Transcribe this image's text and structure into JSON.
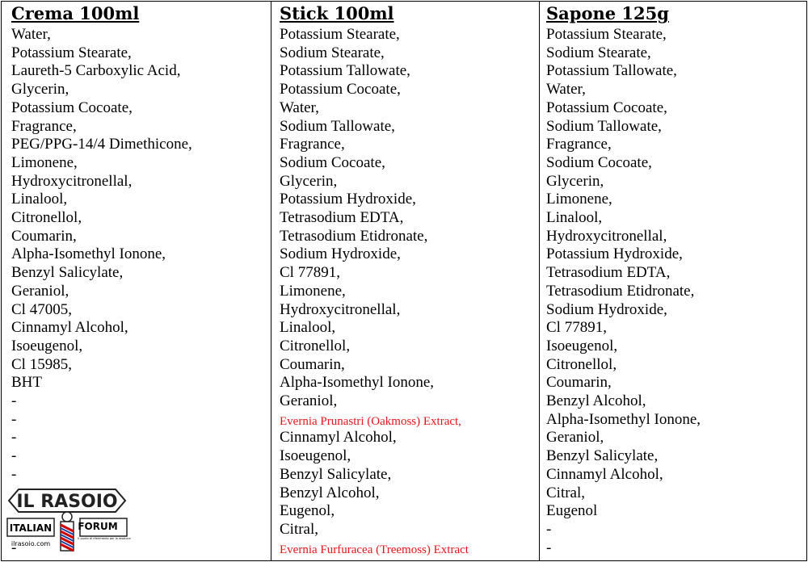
{
  "table": {
    "columns": [
      {
        "header": "Crema 100ml",
        "items": [
          "Water,",
          "Potassium Stearate,",
          "Laureth-5 Carboxylic Acid,",
          "Glycerin,",
          "Potassium Cocoate,",
          "Fragrance,",
          "PEG/PPG-14/4 Dimethicone,",
          "Limonene,",
          "Hydroxycitronellal,",
          "Linalool,",
          "Citronellol,",
          "Coumarin,",
          "Alpha-Isomethyl Ionone,",
          "Benzyl Salicylate,",
          "Geraniol,",
          "Cl 47005,",
          "Cinnamyl Alcohol,",
          "Isoeugenol,",
          "Cl 15985,",
          "BHT",
          "-",
          "-",
          "-",
          "-",
          "-"
        ],
        "last_item": "-"
      },
      {
        "header": "Stick 100ml",
        "items": [
          "Potassium Stearate,",
          "Sodium Stearate,",
          "Potassium Tallowate,",
          "Potassium Cocoate,",
          "Water,",
          "Sodium Tallowate,",
          "Fragrance,",
          "Sodium Cocoate,",
          "Glycerin,",
          "Potassium Hydroxide,",
          "Tetrasodium EDTA,",
          "Tetrasodium Etidronate,",
          "Sodium Hydroxide,",
          "Cl 77891,",
          "Limonene,",
          "Hydroxycitronellal,",
          "Linalool,",
          "Citronellol,",
          "Coumarin,",
          "Alpha-Isomethyl Ionone,",
          "Geraniol,",
          {
            "text": "Evernia Prunastri (Oakmoss) Extract,",
            "color": "#e8141b"
          },
          "Cinnamyl Alcohol,",
          "Isoeugenol,",
          "Benzyl Salicylate,",
          "Benzyl Alcohol,",
          "Eugenol,",
          "Citral,",
          {
            "text": "Evernia Furfuracea (Treemoss) Extract",
            "color": "#e8141b"
          }
        ]
      },
      {
        "header": "Sapone 125g",
        "items": [
          "Potassium Stearate,",
          "Sodium Stearate,",
          "Potassium Tallowate,",
          "Water,",
          "Potassium Cocoate,",
          "Sodium Tallowate,",
          "Fragrance,",
          "Sodium Cocoate,",
          "Glycerin,",
          "Limonene,",
          "Linalool,",
          "Hydroxycitronellal,",
          "Potassium Hydroxide,",
          "Tetrasodium EDTA,",
          "Tetrasodium Etidronate,",
          "Sodium Hydroxide,",
          "Cl 77891,",
          "Isoeugenol,",
          "Citronellol,",
          "Coumarin,",
          "Benzyl Alcohol,",
          "Alpha-Isomethyl Ionone,",
          "Geraniol,",
          "Benzyl Salicylate,",
          "Cinnamyl Alcohol,",
          "Citral,",
          "Eugenol",
          "-",
          "-"
        ]
      }
    ]
  },
  "logo": {
    "title": "IL RASOIO",
    "left": "ITALIAN",
    "right": "FORUM",
    "url": "ilrasoio.com",
    "tagline": "Il punto di riferimento per la rasatura"
  }
}
